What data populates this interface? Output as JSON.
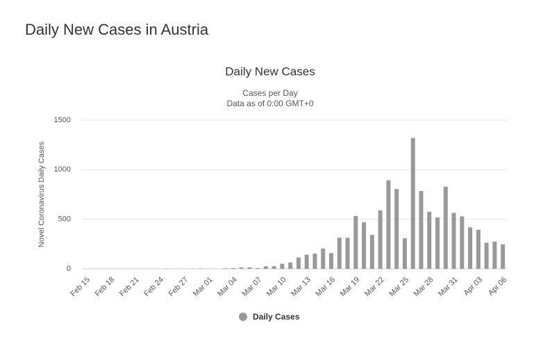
{
  "header": {
    "title": "Daily New Cases in Austria"
  },
  "chart_data": {
    "type": "bar",
    "title": "Daily New Cases",
    "subtitle": [
      "Cases per Day",
      "Data as of 0:00 GMT+0"
    ],
    "y_label": "Novel Coronavirus Daily Cases",
    "categories": [
      "Feb 15",
      null,
      null,
      "Feb 18",
      null,
      null,
      "Feb 21",
      null,
      null,
      "Feb 24",
      null,
      null,
      "Feb 27",
      null,
      null,
      "Mar 01",
      null,
      null,
      "Mar 04",
      null,
      null,
      "Mar 07",
      null,
      null,
      "Mar 10",
      null,
      null,
      "Mar 13",
      null,
      null,
      "Mar 16",
      null,
      null,
      "Mar 19",
      null,
      null,
      "Mar 22",
      null,
      null,
      "Mar 25",
      null,
      null,
      "Mar 28",
      null,
      null,
      "Mar 31",
      null,
      null,
      "Apr 03",
      null,
      null,
      "Apr 06"
    ],
    "series": [
      {
        "name": "Daily Cases",
        "color": "#999999",
        "values": [
          0,
          0,
          0,
          0,
          0,
          0,
          0,
          0,
          0,
          0,
          2,
          0,
          1,
          2,
          4,
          1,
          0,
          6,
          7,
          14,
          14,
          8,
          25,
          27,
          51,
          64,
          115,
          142,
          153,
          205,
          159,
          314,
          314,
          534,
          470,
          342,
          590,
          893,
          805,
          308,
          1321,
          785,
          576,
          519,
          828,
          564,
          529,
          418,
          394,
          263,
          274,
          247
        ]
      }
    ],
    "ylim": [
      0,
      1500
    ],
    "yticks": [
      0,
      500,
      1000,
      1500
    ],
    "grid": true
  }
}
